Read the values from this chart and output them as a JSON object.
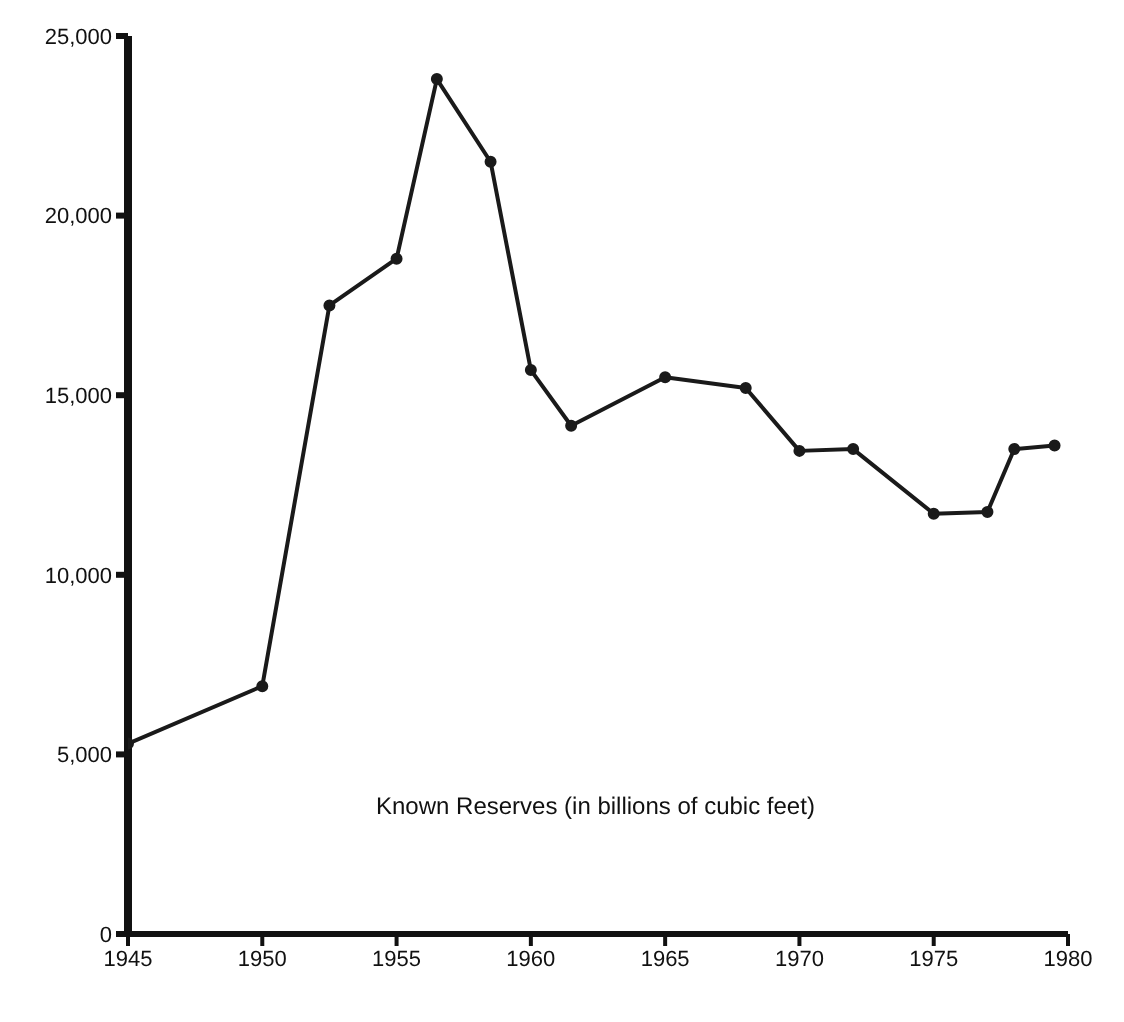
{
  "chart_data": {
    "type": "line",
    "x": [
      1945,
      1950,
      1952.5,
      1955,
      1956.5,
      1958.5,
      1960,
      1961.5,
      1965,
      1968,
      1970,
      1972,
      1975,
      1977,
      1978,
      1979.5
    ],
    "series": [
      {
        "color": "#1a1a1a",
        "values": [
          5300,
          6900,
          17500,
          18800,
          23800,
          21500,
          15700,
          14150,
          15500,
          15200,
          13450,
          13500,
          11700,
          11750,
          13500,
          13600
        ]
      }
    ],
    "xlim": [
      1945,
      1980
    ],
    "xticks": [
      1945,
      1950,
      1955,
      1960,
      1965,
      1970,
      1975,
      1980
    ],
    "ylim": [
      0,
      25000
    ],
    "yticks": [
      {
        "value": 0,
        "label": "0"
      },
      {
        "value": 5000,
        "label": "5,000"
      },
      {
        "value": 10000,
        "label": "10,000"
      },
      {
        "value": 15000,
        "label": "15,000"
      },
      {
        "value": 20000,
        "label": "20,000"
      },
      {
        "value": 25000,
        "label": "25,000"
      }
    ],
    "annotations": [
      "Known Reserves (in billions of cubic feet)"
    ],
    "marker": "circle",
    "grid": false,
    "legend": false
  }
}
